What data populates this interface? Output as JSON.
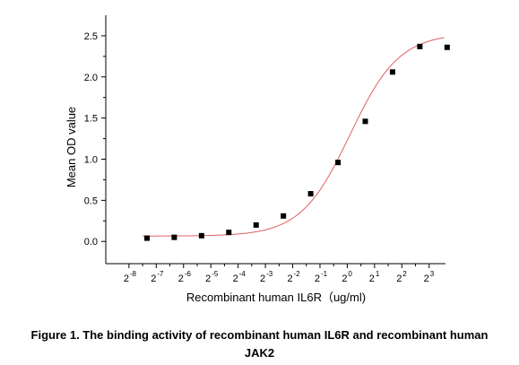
{
  "chart_data": {
    "type": "scatter",
    "x_scale": "log2",
    "xlabel": "Recombinant human  IL6R（ug/ml)",
    "ylabel": "Mean OD value",
    "xlim_exp": [
      -8.85,
      3.6
    ],
    "ylim": [
      -0.27,
      2.75
    ],
    "y_ticks": [
      "0.0",
      "0.5",
      "1.0",
      "1.5",
      "2.0",
      "2.5"
    ],
    "x_ticks": [
      {
        "base": "2",
        "exp": "-8"
      },
      {
        "base": "2",
        "exp": "-7"
      },
      {
        "base": "2",
        "exp": "-6"
      },
      {
        "base": "2",
        "exp": "-5"
      },
      {
        "base": "2",
        "exp": "-4"
      },
      {
        "base": "2",
        "exp": "-3"
      },
      {
        "base": "2",
        "exp": "-2"
      },
      {
        "base": "2",
        "exp": "-1"
      },
      {
        "base": "2",
        "exp": "0"
      },
      {
        "base": "2",
        "exp": "1"
      },
      {
        "base": "2",
        "exp": "2"
      },
      {
        "base": "2",
        "exp": "3"
      }
    ],
    "series": [
      {
        "points": [
          {
            "x_exp": -7.34,
            "y": 0.04
          },
          {
            "x_exp": -6.34,
            "y": 0.05
          },
          {
            "x_exp": -5.34,
            "y": 0.07
          },
          {
            "x_exp": -4.34,
            "y": 0.11
          },
          {
            "x_exp": -3.34,
            "y": 0.2
          },
          {
            "x_exp": -2.34,
            "y": 0.31
          },
          {
            "x_exp": -1.34,
            "y": 0.58
          },
          {
            "x_exp": -0.34,
            "y": 0.96
          },
          {
            "x_exp": 0.66,
            "y": 1.46
          },
          {
            "x_exp": 1.66,
            "y": 2.06
          },
          {
            "x_exp": 2.66,
            "y": 2.37
          },
          {
            "x_exp": 3.66,
            "y": 2.36
          }
        ],
        "marker": "square",
        "color": "#000000"
      }
    ],
    "fit_curve": {
      "model": "4PL",
      "bottom": 0.065,
      "top": 2.53,
      "ec50_exp": 0.1,
      "slope_per_exp": 0.9,
      "color": "#e06060"
    },
    "grid": false,
    "legend": "none"
  },
  "caption": {
    "line1": "Figure 1. The binding activity of recombinant human IL6R and recombinant human",
    "line2": "JAK2"
  }
}
